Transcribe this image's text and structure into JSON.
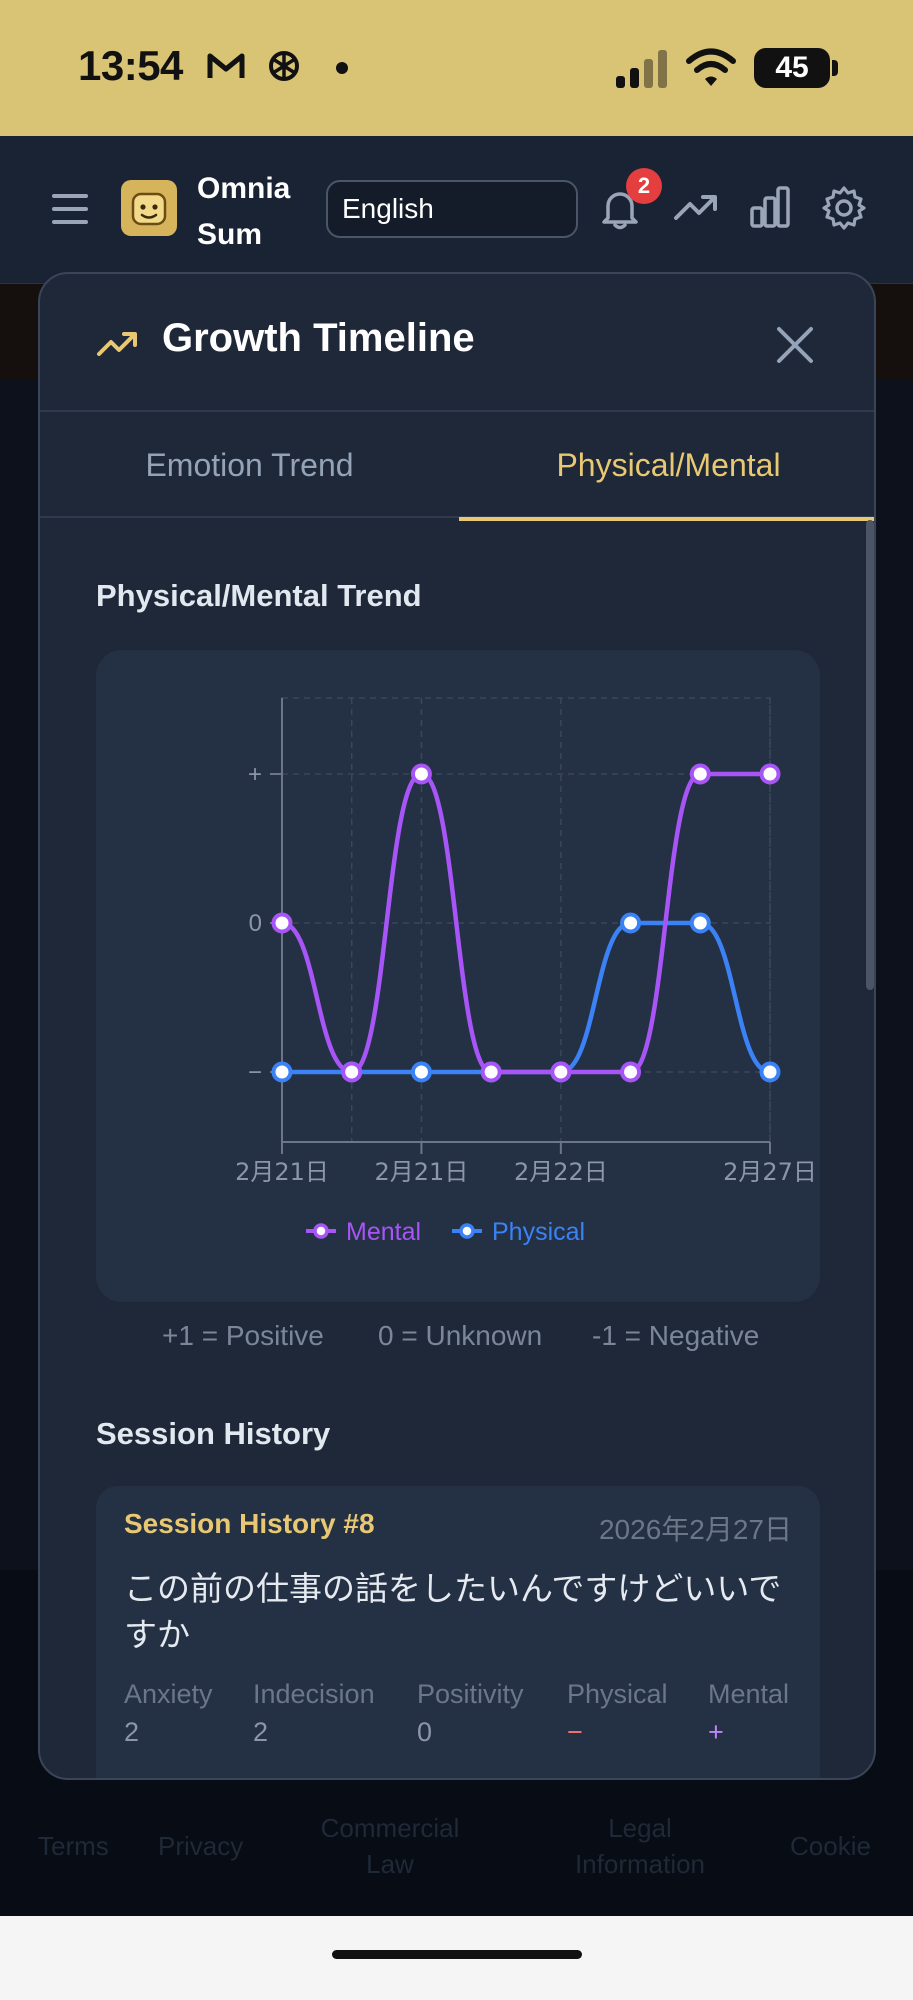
{
  "status_bar": {
    "time": "13:54",
    "battery": "45",
    "icons": [
      "gmail-icon",
      "openai-icon",
      "signal-icon",
      "wifi-icon",
      "battery-icon"
    ]
  },
  "header": {
    "brand_line1": "Omnia",
    "brand_line2": "Sum",
    "language": "English",
    "notification_count": "2",
    "icons": [
      "menu-icon",
      "logo-icon",
      "bell-icon",
      "trending-icon",
      "bar-chart-icon",
      "settings-icon"
    ]
  },
  "modal": {
    "title": "Growth Timeline",
    "tabs": [
      {
        "label": "Emotion Trend",
        "active": false
      },
      {
        "label": "Physical/Mental",
        "active": true
      }
    ],
    "trend_section_title": "Physical/Mental Trend",
    "scale_legend": [
      "+1 = Positive",
      "0 = Unknown",
      "-1 = Negative"
    ],
    "history_title": "Session History",
    "session": {
      "title": "Session History #8",
      "date": "2026年2月27日",
      "text": "この前の仕事の話をしたいんですけどいいですか",
      "metrics": [
        {
          "label": "Anxiety",
          "value": "2"
        },
        {
          "label": "Indecision",
          "value": "2"
        },
        {
          "label": "Positivity",
          "value": "0"
        },
        {
          "label": "Physical",
          "value": "−"
        },
        {
          "label": "Mental",
          "value": "+"
        }
      ]
    }
  },
  "footer": {
    "links": [
      "Terms",
      "Privacy",
      "Commercial Law",
      "Legal Information",
      "Cookie"
    ]
  },
  "colors": {
    "accent": "#e8c872",
    "mental": "#a855f7",
    "physical": "#3b82f6",
    "negative_text": "#f87171",
    "positive_text": "#c084fc"
  },
  "chart_data": {
    "type": "line",
    "y_tick_labels": [
      "+",
      "0",
      "−"
    ],
    "ylim": [
      -1,
      1
    ],
    "x_tick_labels": [
      "2月21日",
      "2月21日",
      "2月22日",
      "2月27日"
    ],
    "x_tick_positions": [
      0,
      2,
      4,
      7
    ],
    "n_points": 8,
    "series": [
      {
        "name": "Mental",
        "values": [
          0,
          -1,
          1,
          -1,
          -1,
          -1,
          1,
          1
        ]
      },
      {
        "name": "Physical",
        "values": [
          -1,
          -1,
          -1,
          -1,
          -1,
          0,
          0,
          -1
        ]
      }
    ],
    "grid": true,
    "legend": "bottom"
  }
}
